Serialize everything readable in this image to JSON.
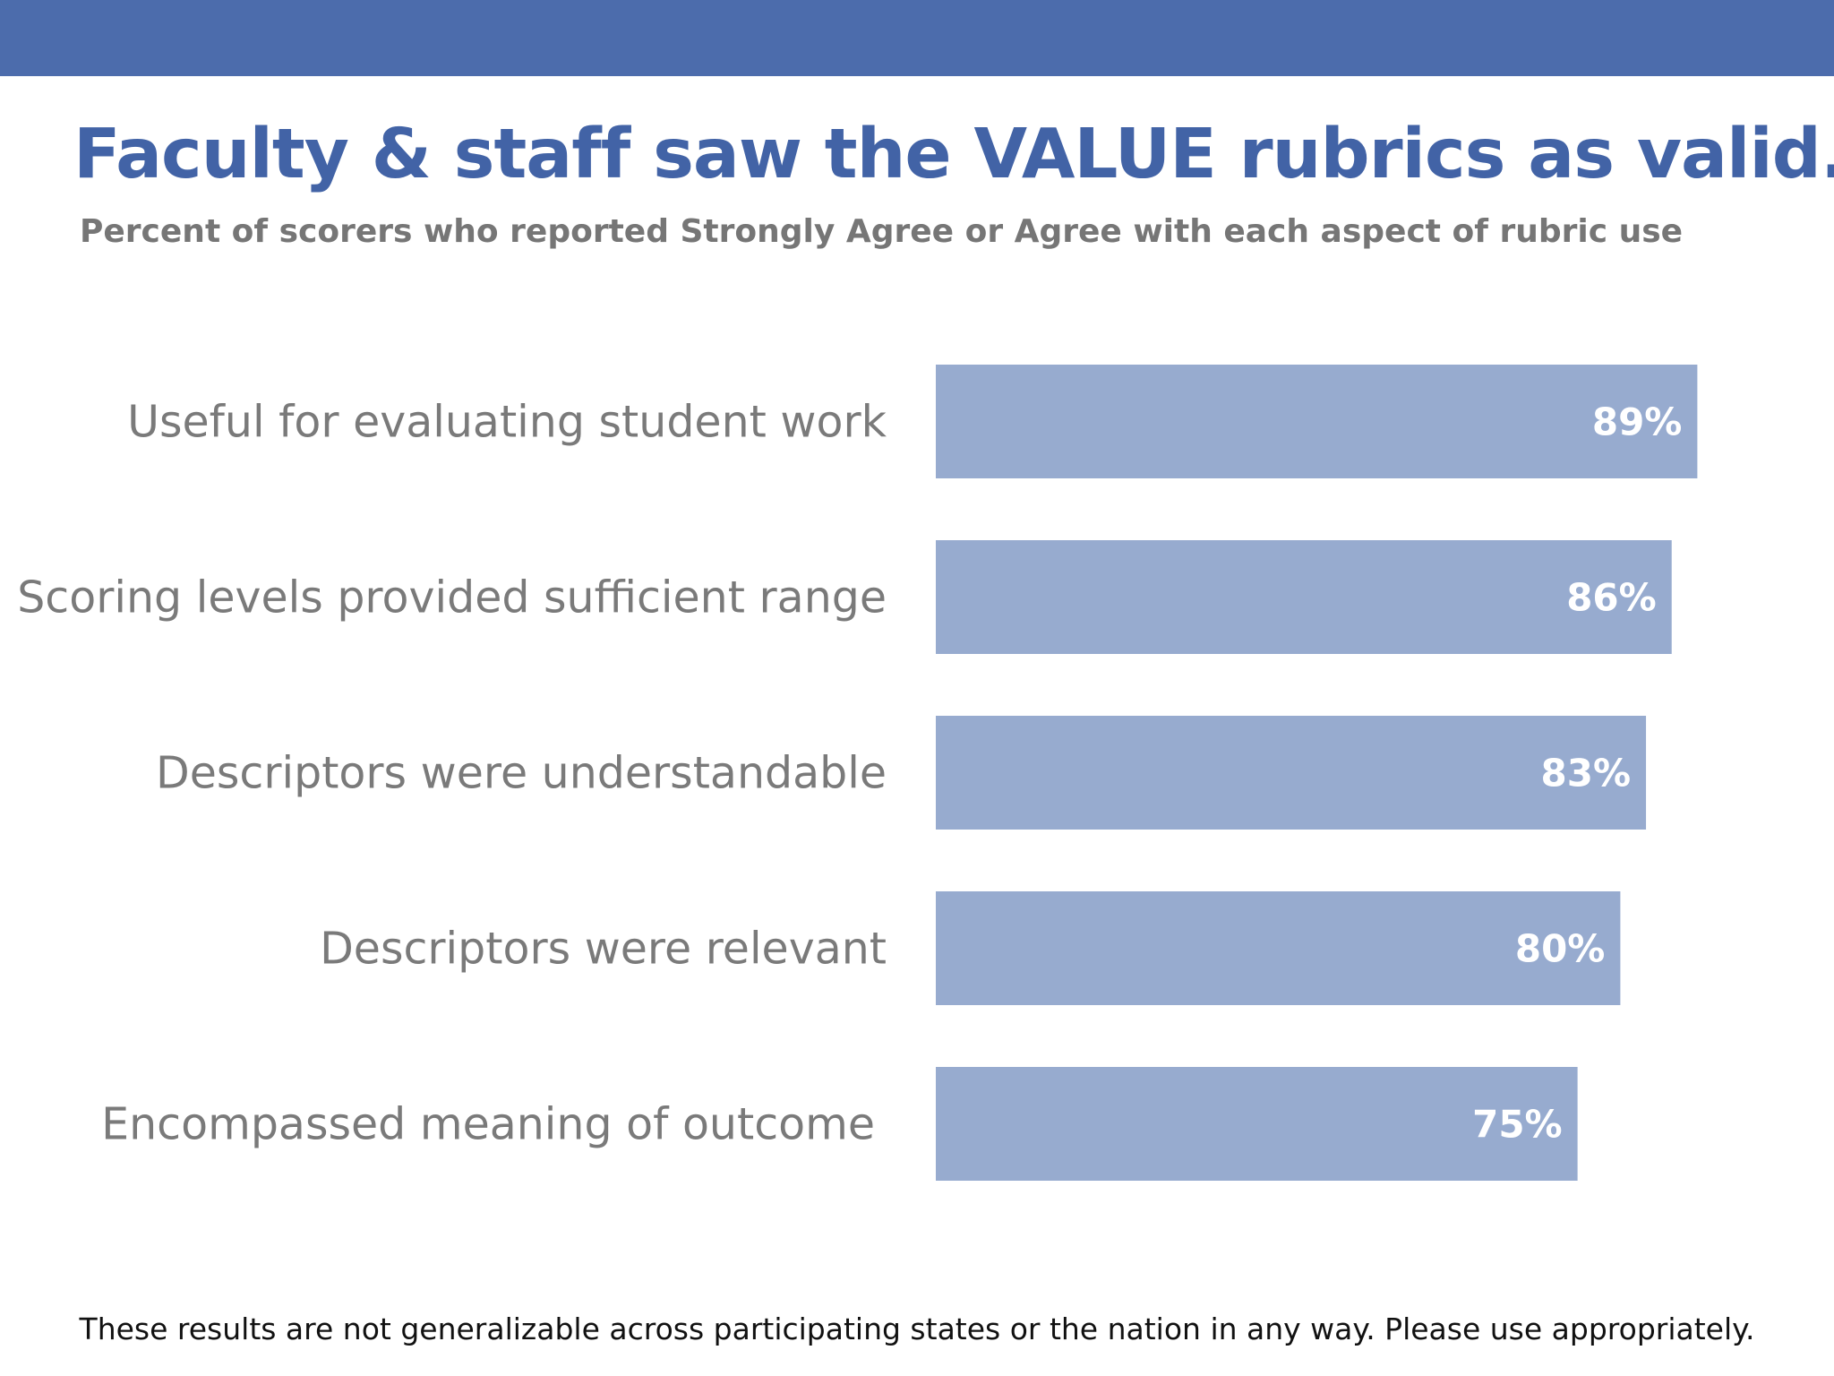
{
  "slide": {
    "band_color": "#4c6cac",
    "footnote": "These results are not generalizable across participating states or the nation in any way. Please use appropriately."
  },
  "chart_data": {
    "type": "bar",
    "orientation": "horizontal",
    "title": "Faculty & staff saw the VALUE rubrics as valid.",
    "subtitle": "Percent of scorers who reported Strongly Agree or Agree with each aspect of rubric use",
    "categories": [
      "Useful for evaluating student work",
      "Scoring levels provided sufficient range",
      "Descriptors were understandable",
      "Descriptors were relevant",
      "Encompassed meaning of outcome"
    ],
    "values": [
      89,
      86,
      83,
      80,
      75
    ],
    "value_labels": [
      "89%",
      "86%",
      "83%",
      "80%",
      "75%"
    ],
    "unit": "%",
    "xlim": [
      0,
      100
    ],
    "grid": false,
    "legend": "none",
    "bar_color": "#97abcf",
    "title_color": "#4263a6"
  }
}
